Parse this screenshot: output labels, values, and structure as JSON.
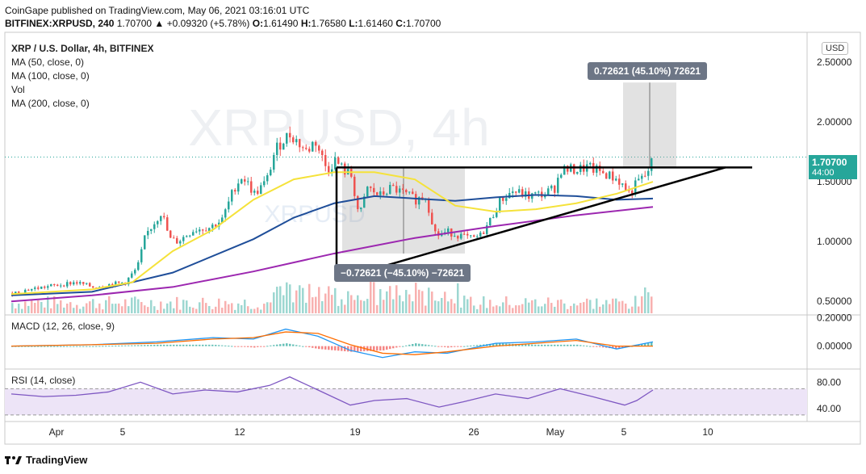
{
  "header": {
    "line1": "CoinGape published on TradingView.com, May 06, 2021 03:16:01 UTC",
    "symbol": "BITFINEX:XRPUSD, 240",
    "change": "1.70700 ▲ +0.09320 (+5.78%)",
    "open_label": "O:",
    "open": "1.61490",
    "high_label": "H:",
    "high": "1.76580",
    "low_label": "L:",
    "low": "1.61460",
    "close_label": "C:",
    "close": "1.70700"
  },
  "legend": {
    "title": "XRP / U.S. Dollar, 4h, BITFINEX",
    "ma50": "MA (50, close, 0)",
    "ma100": "MA (100, close, 0)",
    "vol": "Vol",
    "ma200": "MA (200, close, 0)"
  },
  "watermark": {
    "big": "XRPUSD, 4h",
    "small": "XRPUSD"
  },
  "price_tag": {
    "value": "1.70700",
    "countdown": "44:00"
  },
  "currency": "USD",
  "measures": {
    "up": "0.72621 (45.10%) 72621",
    "down": "−0.72621 (−45.10%) −72621"
  },
  "macd": {
    "label": "MACD (12, 26, close, 9)",
    "ticks": [
      "0.20000",
      "0.00000"
    ]
  },
  "rsi": {
    "label": "RSI (14, close)",
    "ticks": [
      "80.00",
      "40.00"
    ]
  },
  "footer": {
    "brand": "TradingView"
  },
  "colors": {
    "up": "#26a69a",
    "down": "#ef5350",
    "ma50": "#f5e23a",
    "ma100": "#1f4e99",
    "ma200": "#9c27b0",
    "rsi": "#7e57c2",
    "rsi_band": "#ede4f7"
  },
  "chart_data": {
    "type": "candlestick",
    "title": "XRP / U.S. Dollar, 4h, BITFINEX",
    "price_axis": {
      "ticks": [
        2.5,
        2.0,
        1.5,
        1.0,
        0.5
      ],
      "labels": [
        "2.50000",
        "2.00000",
        "1.50000",
        "1.00000",
        "0.50000"
      ],
      "range": [
        0.4,
        2.75
      ]
    },
    "time_axis": {
      "labels": [
        "Apr",
        "5",
        "12",
        "19",
        "26",
        "May",
        "5",
        "10"
      ]
    },
    "price_path": [
      [
        0,
        0.57
      ],
      [
        20,
        0.6
      ],
      [
        40,
        0.62
      ],
      [
        60,
        0.64
      ],
      [
        78,
        0.66
      ],
      [
        100,
        0.62
      ],
      [
        120,
        0.64
      ],
      [
        140,
        0.66
      ],
      [
        155,
        0.78
      ],
      [
        165,
        1.05
      ],
      [
        175,
        1.15
      ],
      [
        185,
        1.25
      ],
      [
        195,
        1.02
      ],
      [
        205,
        1.0
      ],
      [
        225,
        1.1
      ],
      [
        245,
        1.12
      ],
      [
        260,
        1.18
      ],
      [
        275,
        1.45
      ],
      [
        285,
        1.55
      ],
      [
        300,
        1.4
      ],
      [
        315,
        1.5
      ],
      [
        325,
        1.75
      ],
      [
        335,
        1.85
      ],
      [
        345,
        1.9
      ],
      [
        355,
        1.82
      ],
      [
        365,
        1.75
      ],
      [
        375,
        1.85
      ],
      [
        390,
        1.6
      ],
      [
        400,
        1.68
      ],
      [
        410,
        1.6
      ],
      [
        420,
        1.55
      ],
      [
        430,
        1.2
      ],
      [
        440,
        1.45
      ],
      [
        455,
        1.38
      ],
      [
        470,
        1.45
      ],
      [
        485,
        1.4
      ],
      [
        500,
        1.35
      ],
      [
        512,
        1.38
      ],
      [
        525,
        1.05
      ],
      [
        540,
        1.08
      ],
      [
        555,
        1.05
      ],
      [
        570,
        1.02
      ],
      [
        580,
        1.05
      ],
      [
        590,
        1.15
      ],
      [
        605,
        1.35
      ],
      [
        620,
        1.42
      ],
      [
        640,
        1.38
      ],
      [
        660,
        1.4
      ],
      [
        672,
        1.45
      ],
      [
        680,
        1.6
      ],
      [
        700,
        1.6
      ],
      [
        712,
        1.62
      ],
      [
        730,
        1.58
      ],
      [
        750,
        1.52
      ],
      [
        765,
        1.4
      ],
      [
        775,
        1.5
      ],
      [
        785,
        1.55
      ],
      [
        795,
        1.7
      ]
    ],
    "ma50_path": [
      [
        0,
        0.56
      ],
      [
        100,
        0.6
      ],
      [
        150,
        0.66
      ],
      [
        200,
        0.92
      ],
      [
        250,
        1.1
      ],
      [
        300,
        1.35
      ],
      [
        350,
        1.52
      ],
      [
        400,
        1.58
      ],
      [
        450,
        1.58
      ],
      [
        500,
        1.52
      ],
      [
        550,
        1.3
      ],
      [
        600,
        1.25
      ],
      [
        650,
        1.27
      ],
      [
        700,
        1.32
      ],
      [
        750,
        1.4
      ],
      [
        795,
        1.5
      ]
    ],
    "ma100_path": [
      [
        0,
        0.55
      ],
      [
        100,
        0.58
      ],
      [
        200,
        0.74
      ],
      [
        300,
        1.02
      ],
      [
        350,
        1.2
      ],
      [
        400,
        1.32
      ],
      [
        450,
        1.38
      ],
      [
        500,
        1.36
      ],
      [
        550,
        1.34
      ],
      [
        600,
        1.37
      ],
      [
        650,
        1.39
      ],
      [
        700,
        1.38
      ],
      [
        750,
        1.35
      ],
      [
        795,
        1.36
      ]
    ],
    "ma200_path": [
      [
        0,
        0.5
      ],
      [
        100,
        0.55
      ],
      [
        200,
        0.62
      ],
      [
        300,
        0.75
      ],
      [
        400,
        0.9
      ],
      [
        500,
        1.03
      ],
      [
        600,
        1.13
      ],
      [
        700,
        1.22
      ],
      [
        795,
        1.29
      ]
    ],
    "resistance": {
      "from": [
        403,
        1.62
      ],
      "to": [
        918,
        1.62
      ],
      "label": ""
    },
    "support": {
      "from": [
        403,
        0.68
      ],
      "to": [
        885,
        1.62
      ]
    },
    "measure_up_range": [
      1.62,
      2.33
    ],
    "measure_down_range": [
      1.62,
      0.9
    ],
    "rsi_values": [
      [
        0,
        62
      ],
      [
        40,
        58
      ],
      [
        80,
        60
      ],
      [
        120,
        65
      ],
      [
        160,
        80
      ],
      [
        200,
        62
      ],
      [
        240,
        68
      ],
      [
        280,
        65
      ],
      [
        320,
        75
      ],
      [
        345,
        88
      ],
      [
        380,
        68
      ],
      [
        420,
        45
      ],
      [
        450,
        52
      ],
      [
        490,
        55
      ],
      [
        530,
        42
      ],
      [
        560,
        50
      ],
      [
        600,
        62
      ],
      [
        640,
        55
      ],
      [
        680,
        70
      ],
      [
        720,
        58
      ],
      [
        760,
        45
      ],
      [
        775,
        52
      ],
      [
        795,
        68
      ]
    ],
    "rsi_range": [
      20,
      100
    ],
    "rsi_bands": [
      70,
      30
    ],
    "macd_line": [
      [
        0,
        0.0
      ],
      [
        100,
        0.01
      ],
      [
        180,
        0.03
      ],
      [
        250,
        0.06
      ],
      [
        300,
        0.05
      ],
      [
        340,
        0.12
      ],
      [
        380,
        0.07
      ],
      [
        420,
        -0.03
      ],
      [
        460,
        -0.08
      ],
      [
        500,
        -0.04
      ],
      [
        540,
        -0.05
      ],
      [
        600,
        0.02
      ],
      [
        650,
        0.03
      ],
      [
        700,
        0.05
      ],
      [
        750,
        -0.02
      ],
      [
        795,
        0.03
      ]
    ],
    "macd_signal": [
      [
        0,
        0.0
      ],
      [
        100,
        0.01
      ],
      [
        180,
        0.02
      ],
      [
        250,
        0.05
      ],
      [
        300,
        0.06
      ],
      [
        340,
        0.1
      ],
      [
        380,
        0.09
      ],
      [
        420,
        0.01
      ],
      [
        460,
        -0.05
      ],
      [
        500,
        -0.06
      ],
      [
        540,
        -0.04
      ],
      [
        600,
        0.0
      ],
      [
        650,
        0.02
      ],
      [
        700,
        0.04
      ],
      [
        750,
        0.0
      ],
      [
        795,
        0.0
      ]
    ],
    "macd_range": [
      -0.15,
      0.22
    ]
  }
}
